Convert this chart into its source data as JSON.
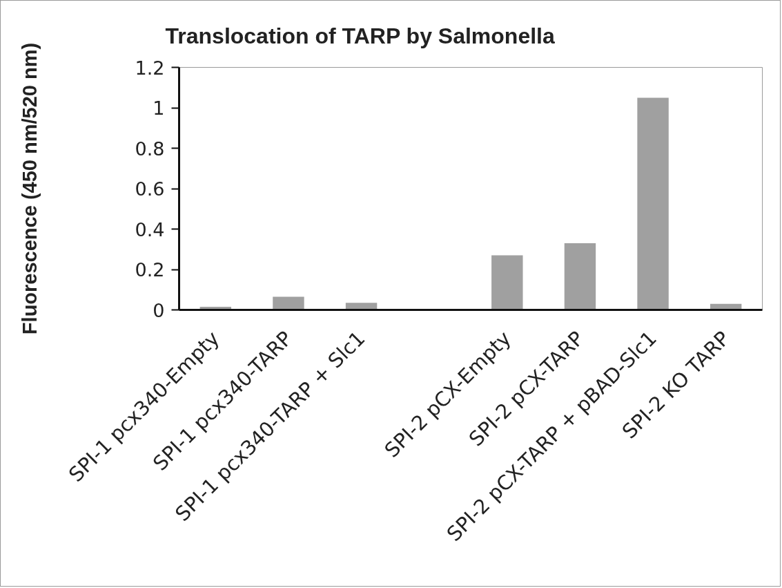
{
  "chart_data": {
    "type": "bar",
    "title": "Translocation of TARP by Salmonella",
    "ylabel": "Fluorescence (450 nm/520 nm)",
    "categories": [
      "SPI-1 pcx340-Empty",
      "SPI-1 pcx340-TARP",
      "SPI-1 pcx340-TARP + Slc1",
      null,
      "SPI-2 pCX-Empty",
      "SPI-2 pCX-TARP",
      "SPI-2 pCX-TARP + pBAD-Slc1",
      "SPI-2 KO TARP"
    ],
    "values": [
      0.015,
      0.065,
      0.035,
      null,
      0.27,
      0.33,
      1.05,
      0.03
    ],
    "color": "#a0a0a0",
    "ylim": [
      0,
      1.2
    ],
    "yticks": [
      0,
      0.2,
      0.4,
      0.6,
      0.8,
      1,
      1.2
    ]
  }
}
